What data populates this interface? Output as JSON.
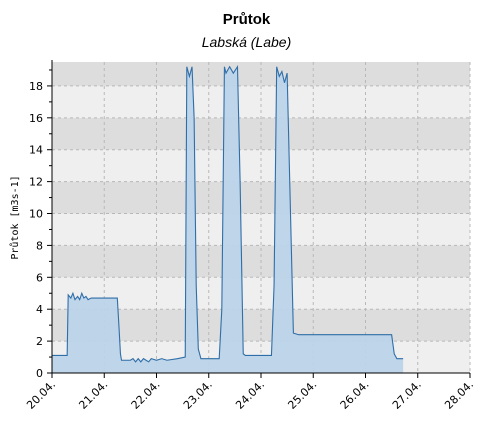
{
  "chart_data": {
    "type": "area",
    "title": "Průtok",
    "subtitle": "Labská (Labe)",
    "xlabel": "",
    "ylabel": "Průtok [m3s-1]",
    "x_tick_labels": [
      "20.04.",
      "21.04.",
      "22.04.",
      "23.04.",
      "24.04.",
      "25.04.",
      "26.04.",
      "27.04.",
      "28.04."
    ],
    "xlim": [
      0,
      8
    ],
    "ylim": [
      0,
      19.5
    ],
    "y_ticks": [
      0,
      2,
      4,
      6,
      8,
      10,
      12,
      14,
      16,
      18
    ],
    "grid": "alternating horizontal bands, dashed vertical lines",
    "colors": {
      "fill": "#bcd3e8",
      "line": "#2f6ea8",
      "band_light": "#efefef",
      "band_dark": "#dddddd",
      "grid_line": "#b8b8b8"
    },
    "series": [
      {
        "x": [
          0.0,
          0.29,
          0.31,
          0.36,
          0.4,
          0.44,
          0.49,
          0.53,
          0.57,
          0.61,
          0.65,
          0.69,
          0.75,
          1.0,
          1.25,
          1.28,
          1.31,
          1.33,
          1.5,
          1.55,
          1.6,
          1.65,
          1.7,
          1.75,
          1.8,
          1.85,
          1.9,
          2.0,
          2.1,
          2.2,
          2.4,
          2.55,
          2.58,
          2.63,
          2.68,
          2.72,
          2.76,
          2.8,
          2.85,
          2.9,
          3.2,
          3.25,
          3.3,
          3.33,
          3.4,
          3.47,
          3.55,
          3.6,
          3.66,
          3.7,
          4.2,
          4.25,
          4.3,
          4.35,
          4.4,
          4.45,
          4.5,
          4.55,
          4.62,
          4.72,
          5.0,
          6.0,
          6.5,
          6.55,
          6.6,
          6.72
        ],
        "y": [
          1.1,
          1.1,
          4.9,
          4.7,
          5.0,
          4.6,
          4.8,
          4.6,
          5.0,
          4.7,
          4.8,
          4.6,
          4.7,
          4.7,
          4.7,
          3.0,
          1.2,
          0.8,
          0.8,
          0.9,
          0.7,
          0.9,
          0.7,
          0.9,
          0.8,
          0.7,
          0.9,
          0.8,
          0.9,
          0.8,
          0.9,
          1.0,
          19.2,
          18.6,
          19.2,
          16.0,
          5.5,
          1.5,
          0.9,
          0.9,
          0.9,
          4.0,
          19.2,
          18.8,
          19.2,
          18.8,
          19.2,
          12.0,
          1.2,
          1.1,
          1.1,
          5.5,
          19.2,
          18.6,
          18.9,
          18.2,
          18.8,
          12.0,
          2.5,
          2.4,
          2.4,
          2.4,
          2.4,
          1.2,
          0.9,
          0.9
        ]
      }
    ]
  }
}
